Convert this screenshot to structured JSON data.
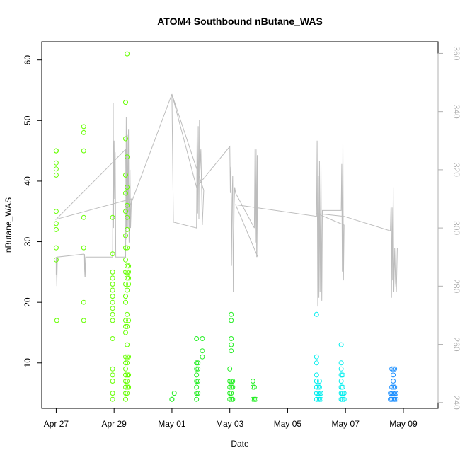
{
  "chart_data": {
    "type": "scatter",
    "title": "ATOM4 Southbound nButane_WAS",
    "xlabel": "Date",
    "ylabel": "nButane_WAS",
    "x_ticks": [
      "Apr 27",
      "Apr 29",
      "May 01",
      "May 03",
      "May 05",
      "May 07",
      "May 09"
    ],
    "x_tick_days": [
      0,
      2,
      4,
      6,
      8,
      10,
      12
    ],
    "xlim_days": [
      -0.5,
      13.2
    ],
    "ylim": [
      2.5,
      63
    ],
    "y_ticks": [
      10,
      20,
      30,
      40,
      50,
      60
    ],
    "y2lim": [
      238,
      364
    ],
    "y2_ticks": [
      240,
      260,
      280,
      300,
      320,
      340,
      360
    ],
    "grid": false,
    "legend": "none",
    "series": [
      {
        "kind": "points",
        "points": [
          [
            0.0,
            45
          ],
          [
            0.0,
            45
          ],
          [
            0.0,
            43
          ],
          [
            0.0,
            42
          ],
          [
            0.0,
            41
          ],
          [
            0.0,
            35
          ],
          [
            0.0,
            33
          ],
          [
            0.0,
            32
          ],
          [
            0.0,
            29
          ],
          [
            0.0,
            27
          ],
          [
            0.02,
            17
          ],
          [
            0.95,
            49
          ],
          [
            0.95,
            48
          ],
          [
            0.95,
            45
          ],
          [
            0.95,
            34
          ],
          [
            0.95,
            29
          ],
          [
            0.95,
            20
          ],
          [
            0.95,
            17
          ],
          [
            1.95,
            34
          ],
          [
            1.95,
            28
          ],
          [
            1.95,
            25
          ],
          [
            1.95,
            24
          ],
          [
            1.95,
            23
          ],
          [
            1.95,
            22
          ],
          [
            1.95,
            21
          ],
          [
            1.95,
            20
          ],
          [
            1.95,
            19
          ],
          [
            1.95,
            18
          ],
          [
            1.95,
            17
          ],
          [
            1.95,
            14
          ],
          [
            1.95,
            9
          ],
          [
            1.95,
            8
          ],
          [
            1.95,
            7
          ],
          [
            1.95,
            5
          ],
          [
            1.95,
            4
          ],
          [
            2.4,
            53
          ],
          [
            2.4,
            47
          ],
          [
            2.4,
            41
          ],
          [
            2.4,
            38
          ],
          [
            2.4,
            35
          ],
          [
            2.4,
            31
          ],
          [
            2.4,
            29
          ],
          [
            2.4,
            27
          ],
          [
            2.4,
            25
          ],
          [
            2.4,
            23
          ],
          [
            2.4,
            21
          ],
          [
            2.4,
            20
          ],
          [
            2.4,
            17
          ],
          [
            2.4,
            16
          ],
          [
            2.4,
            15
          ],
          [
            2.4,
            11
          ],
          [
            2.4,
            10
          ],
          [
            2.4,
            9
          ],
          [
            2.4,
            8
          ],
          [
            2.4,
            7
          ],
          [
            2.4,
            6
          ],
          [
            2.4,
            5
          ],
          [
            2.4,
            4
          ],
          [
            2.45,
            61
          ],
          [
            2.45,
            44
          ],
          [
            2.45,
            39
          ],
          [
            2.45,
            36
          ],
          [
            2.45,
            34
          ],
          [
            2.45,
            32
          ],
          [
            2.45,
            29
          ],
          [
            2.45,
            26
          ],
          [
            2.45,
            25
          ],
          [
            2.45,
            24
          ],
          [
            2.45,
            22
          ],
          [
            2.45,
            18
          ],
          [
            2.45,
            16
          ],
          [
            2.45,
            13
          ],
          [
            2.45,
            11
          ],
          [
            2.45,
            10
          ],
          [
            2.45,
            8
          ],
          [
            2.45,
            7
          ],
          [
            2.45,
            6
          ],
          [
            2.45,
            5
          ],
          [
            2.5,
            26
          ],
          [
            2.5,
            25
          ],
          [
            2.5,
            24
          ],
          [
            2.5,
            23
          ],
          [
            2.5,
            17
          ],
          [
            2.5,
            11
          ],
          [
            2.5,
            8
          ],
          [
            2.5,
            6
          ]
        ]
      },
      {
        "kind": "points",
        "points": [
          [
            4.0,
            4
          ],
          [
            4.0,
            4
          ],
          [
            4.08,
            5
          ],
          [
            4.85,
            14
          ],
          [
            4.85,
            10
          ],
          [
            4.85,
            9
          ],
          [
            4.85,
            8
          ],
          [
            4.85,
            7
          ],
          [
            4.85,
            6
          ],
          [
            4.85,
            5
          ],
          [
            4.85,
            4
          ],
          [
            4.9,
            10
          ],
          [
            4.9,
            9
          ],
          [
            4.9,
            7
          ],
          [
            4.9,
            5
          ],
          [
            5.05,
            14
          ],
          [
            5.05,
            12
          ],
          [
            5.05,
            11
          ],
          [
            6.0,
            9
          ],
          [
            6.0,
            7
          ],
          [
            6.0,
            6
          ],
          [
            6.0,
            5
          ],
          [
            6.0,
            4
          ],
          [
            6.05,
            18
          ],
          [
            6.05,
            17
          ],
          [
            6.05,
            14
          ],
          [
            6.05,
            13
          ],
          [
            6.05,
            12
          ],
          [
            6.05,
            7
          ],
          [
            6.05,
            6
          ],
          [
            6.05,
            5
          ],
          [
            6.05,
            4
          ],
          [
            6.1,
            7
          ],
          [
            6.1,
            6
          ],
          [
            6.1,
            4
          ],
          [
            6.8,
            7
          ],
          [
            6.8,
            6
          ],
          [
            6.8,
            4
          ],
          [
            6.85,
            6
          ],
          [
            6.85,
            4
          ],
          [
            6.9,
            4
          ]
        ]
      },
      {
        "kind": "points",
        "points": [
          [
            9.0,
            18
          ],
          [
            9.0,
            11
          ],
          [
            9.0,
            10
          ],
          [
            9.0,
            8
          ],
          [
            9.0,
            7
          ],
          [
            9.0,
            6
          ],
          [
            9.0,
            5
          ],
          [
            9.0,
            4
          ],
          [
            9.05,
            6
          ],
          [
            9.05,
            5
          ],
          [
            9.05,
            4
          ],
          [
            9.1,
            7
          ],
          [
            9.1,
            6
          ],
          [
            9.1,
            5
          ],
          [
            9.1,
            4
          ],
          [
            9.15,
            5
          ],
          [
            9.15,
            4
          ],
          [
            9.85,
            13
          ],
          [
            9.85,
            10
          ],
          [
            9.85,
            9
          ],
          [
            9.85,
            8
          ],
          [
            9.85,
            7
          ],
          [
            9.85,
            6
          ],
          [
            9.85,
            5
          ],
          [
            9.85,
            4
          ],
          [
            9.9,
            8
          ],
          [
            9.9,
            6
          ],
          [
            9.9,
            5
          ],
          [
            9.9,
            4
          ],
          [
            9.95,
            5
          ],
          [
            9.95,
            4
          ]
        ]
      },
      {
        "kind": "points",
        "points": [
          [
            11.55,
            5
          ],
          [
            11.55,
            4
          ],
          [
            11.6,
            9
          ],
          [
            11.6,
            6
          ],
          [
            11.6,
            5
          ],
          [
            11.6,
            4
          ],
          [
            11.65,
            9
          ],
          [
            11.65,
            8
          ],
          [
            11.65,
            7
          ],
          [
            11.65,
            6
          ],
          [
            11.65,
            5
          ],
          [
            11.65,
            4
          ],
          [
            11.7,
            9
          ],
          [
            11.7,
            6
          ],
          [
            11.7,
            5
          ],
          [
            11.7,
            4
          ],
          [
            11.75,
            5
          ],
          [
            11.75,
            4
          ]
        ]
      },
      {
        "kind": "line",
        "axis": "right",
        "points": [
          [
            0.0,
            284
          ],
          [
            0.0,
            290
          ],
          [
            0.02,
            280
          ],
          [
            0.04,
            290
          ],
          [
            0.95,
            291
          ],
          [
            0.96,
            283
          ],
          [
            0.98,
            291
          ],
          [
            1.0,
            283
          ],
          [
            1.02,
            290
          ],
          [
            1.95,
            290
          ],
          [
            1.97,
            343
          ],
          [
            1.98,
            300
          ],
          [
            2.0,
            330
          ],
          [
            2.02,
            310
          ],
          [
            2.04,
            326
          ],
          [
            2.06,
            290
          ],
          [
            2.4,
            290
          ],
          [
            2.42,
            338
          ],
          [
            2.44,
            296
          ],
          [
            2.46,
            332
          ],
          [
            2.48,
            300
          ],
          [
            2.5,
            334
          ],
          [
            2.52,
            295
          ],
          [
            2.55,
            320
          ],
          [
            2.57,
            300
          ],
          [
            2.6,
            310
          ],
          [
            0.0,
            303
          ],
          [
            2.4,
            327
          ],
          [
            2.42,
            300
          ],
          [
            2.44,
            330
          ],
          [
            2.46,
            305
          ],
          [
            4.0,
            346
          ],
          [
            4.05,
            302
          ],
          [
            4.85,
            300
          ],
          [
            4.87,
            332
          ],
          [
            4.89,
            305
          ],
          [
            4.91,
            335
          ],
          [
            4.93,
            303
          ],
          [
            4.95,
            337
          ],
          [
            4.97,
            320
          ],
          [
            5.0,
            327
          ],
          [
            5.05,
            301
          ],
          [
            5.1,
            313
          ],
          [
            4.0,
            346
          ],
          [
            4.85,
            314
          ],
          [
            6.0,
            328
          ],
          [
            6.02,
            312
          ],
          [
            6.04,
            321
          ],
          [
            6.06,
            287
          ],
          [
            6.08,
            310
          ],
          [
            6.1,
            318
          ],
          [
            6.12,
            278
          ],
          [
            6.15,
            308
          ],
          [
            6.17,
            314
          ],
          [
            6.2,
            312
          ],
          [
            6.85,
            300
          ],
          [
            6.87,
            327
          ],
          [
            6.89,
            295
          ],
          [
            6.91,
            327
          ],
          [
            6.93,
            290
          ],
          [
            6.95,
            325
          ],
          [
            6.97,
            290
          ],
          [
            6.2,
            308
          ],
          [
            9.0,
            304
          ],
          [
            9.02,
            330
          ],
          [
            9.04,
            273
          ],
          [
            9.06,
            318
          ],
          [
            9.08,
            276
          ],
          [
            9.1,
            323
          ],
          [
            9.12,
            278
          ],
          [
            9.15,
            322
          ],
          [
            9.18,
            275
          ],
          [
            9.2,
            306
          ],
          [
            9.85,
            306
          ],
          [
            9.87,
            322
          ],
          [
            9.89,
            285
          ],
          [
            9.91,
            329
          ],
          [
            9.93,
            282
          ],
          [
            9.95,
            301
          ],
          [
            9.0,
            305
          ],
          [
            9.95,
            304
          ],
          [
            11.55,
            299
          ],
          [
            11.57,
            307
          ],
          [
            11.59,
            276
          ],
          [
            11.61,
            307
          ],
          [
            11.63,
            282
          ],
          [
            11.65,
            314
          ],
          [
            11.67,
            278
          ],
          [
            11.7,
            293
          ],
          [
            11.73,
            281
          ],
          [
            11.76,
            278
          ],
          [
            11.79,
            293
          ]
        ]
      }
    ]
  },
  "colors": {
    "series_colors": [
      "#66ff00",
      "#22ee22",
      "#00eeee",
      "#1e90ff"
    ],
    "line_color": "#bdbdbd",
    "axis_color": "#000000",
    "right_axis_color": "#b0b0b0"
  }
}
